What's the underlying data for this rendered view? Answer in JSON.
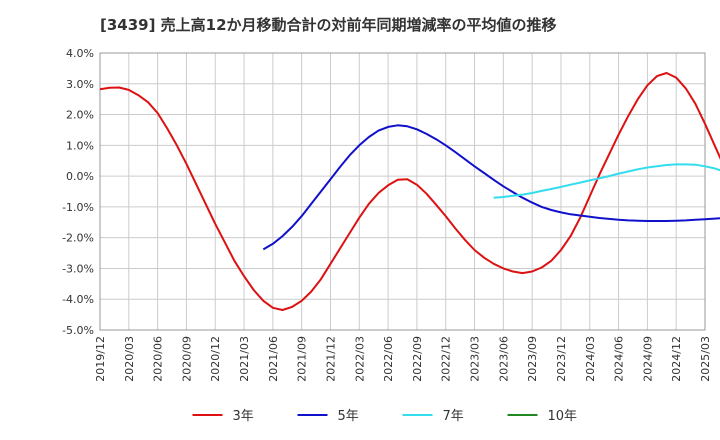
{
  "chart_data": {
    "type": "line",
    "title": "[3439]  売上高12か月移動合計の対前年同期増減率の平均値の推移",
    "xlabel": "",
    "ylabel": "",
    "ylim": [
      -5.0,
      4.0
    ],
    "y_ticks": [
      "4.0%",
      "3.0%",
      "2.0%",
      "1.0%",
      "0.0%",
      "-1.0%",
      "-2.0%",
      "-3.0%",
      "-4.0%",
      "-5.0%"
    ],
    "y_tick_values": [
      4,
      3,
      2,
      1,
      0,
      -1,
      -2,
      -3,
      -4,
      -5
    ],
    "x_ticks": [
      "2019/12",
      "2020/03",
      "2020/06",
      "2020/09",
      "2020/12",
      "2021/03",
      "2021/06",
      "2021/09",
      "2021/12",
      "2022/03",
      "2022/06",
      "2022/09",
      "2022/12",
      "2023/03",
      "2023/06",
      "2023/09",
      "2023/12",
      "2024/03",
      "2024/06",
      "2024/09",
      "2024/12",
      "2025/03"
    ],
    "x_start": "2019/12",
    "grid": true,
    "legend_position": "bottom",
    "series": [
      {
        "name": "3年",
        "color": "#dd1111",
        "start": "2019/12",
        "values": [
          2.82,
          2.87,
          2.88,
          2.8,
          2.63,
          2.4,
          2.05,
          1.55,
          1.0,
          0.4,
          -0.25,
          -0.9,
          -1.55,
          -2.15,
          -2.75,
          -3.25,
          -3.7,
          -4.05,
          -4.28,
          -4.35,
          -4.25,
          -4.05,
          -3.75,
          -3.35,
          -2.85,
          -2.35,
          -1.85,
          -1.35,
          -0.9,
          -0.55,
          -0.3,
          -0.12,
          -0.1,
          -0.28,
          -0.57,
          -0.93,
          -1.3,
          -1.7,
          -2.07,
          -2.4,
          -2.65,
          -2.85,
          -3.0,
          -3.1,
          -3.15,
          -3.1,
          -2.97,
          -2.75,
          -2.4,
          -1.95,
          -1.35,
          -0.65,
          0.05,
          0.7,
          1.35,
          1.95,
          2.5,
          2.95,
          3.25,
          3.35,
          3.2,
          2.85,
          2.35,
          1.7,
          1.0,
          0.3,
          -0.4
        ]
      },
      {
        "name": "5年",
        "color": "#1111cc",
        "start": "2021/05",
        "values": [
          -2.38,
          -2.2,
          -1.95,
          -1.65,
          -1.3,
          -0.9,
          -0.5,
          -0.1,
          0.3,
          0.68,
          1.0,
          1.27,
          1.48,
          1.6,
          1.65,
          1.62,
          1.52,
          1.37,
          1.2,
          1.0,
          0.78,
          0.55,
          0.32,
          0.1,
          -0.12,
          -0.33,
          -0.52,
          -0.7,
          -0.86,
          -1.0,
          -1.1,
          -1.18,
          -1.24,
          -1.28,
          -1.32,
          -1.36,
          -1.39,
          -1.42,
          -1.44,
          -1.45,
          -1.46,
          -1.46,
          -1.46,
          -1.45,
          -1.44,
          -1.42,
          -1.4,
          -1.38,
          -1.36,
          -1.34,
          -1.32,
          -1.3,
          -1.29,
          -1.28,
          -1.28,
          -1.29,
          -1.3
        ]
      },
      {
        "name": "7年",
        "color": "#33ddee",
        "start": "2023/05",
        "values": [
          -0.7,
          -0.68,
          -0.64,
          -0.6,
          -0.55,
          -0.48,
          -0.42,
          -0.35,
          -0.28,
          -0.21,
          -0.14,
          -0.07,
          0.0,
          0.08,
          0.15,
          0.22,
          0.28,
          0.32,
          0.36,
          0.38,
          0.38,
          0.37,
          0.32,
          0.25,
          0.15
        ]
      },
      {
        "name": "10年",
        "color": "#228822",
        "start": "2024/12",
        "values": []
      }
    ]
  }
}
